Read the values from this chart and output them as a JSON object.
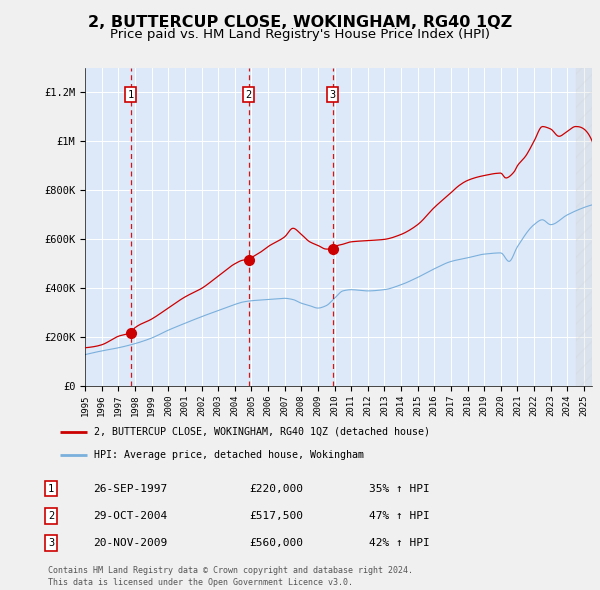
{
  "title": "2, BUTTERCUP CLOSE, WOKINGHAM, RG40 1QZ",
  "subtitle": "Price paid vs. HM Land Registry's House Price Index (HPI)",
  "title_fontsize": 11.5,
  "subtitle_fontsize": 9.5,
  "bg_color": "#f0f0f0",
  "plot_bg_color": "#dde8f8",
  "grid_color": "#ffffff",
  "red_line_color": "#cc0000",
  "blue_line_color": "#7ab0dc",
  "sale_marker_color": "#cc0000",
  "dashed_line_color": "#cc0000",
  "ylim": [
    0,
    1300000
  ],
  "xlim_start": 1995.0,
  "xlim_end": 2025.5,
  "yticks": [
    0,
    200000,
    400000,
    600000,
    800000,
    1000000,
    1200000
  ],
  "ytick_labels": [
    "£0",
    "£200K",
    "£400K",
    "£600K",
    "£800K",
    "£1M",
    "£1.2M"
  ],
  "xtick_years": [
    1995,
    1996,
    1997,
    1998,
    1999,
    2000,
    2001,
    2002,
    2003,
    2004,
    2005,
    2006,
    2007,
    2008,
    2009,
    2010,
    2011,
    2012,
    2013,
    2014,
    2015,
    2016,
    2017,
    2018,
    2019,
    2020,
    2021,
    2022,
    2023,
    2024,
    2025
  ],
  "sales": [
    {
      "year": 1997.74,
      "price": 220000,
      "label": "1"
    },
    {
      "year": 2004.83,
      "price": 517500,
      "label": "2"
    },
    {
      "year": 2009.89,
      "price": 560000,
      "label": "3"
    }
  ],
  "legend_entries": [
    {
      "label": "2, BUTTERCUP CLOSE, WOKINGHAM, RG40 1QZ (detached house)",
      "color": "#cc0000"
    },
    {
      "label": "HPI: Average price, detached house, Wokingham",
      "color": "#7ab0dc"
    }
  ],
  "table_rows": [
    {
      "num": "1",
      "date": "26-SEP-1997",
      "price": "£220,000",
      "change": "35% ↑ HPI"
    },
    {
      "num": "2",
      "date": "29-OCT-2004",
      "price": "£517,500",
      "change": "47% ↑ HPI"
    },
    {
      "num": "3",
      "date": "20-NOV-2009",
      "price": "£560,000",
      "change": "42% ↑ HPI"
    }
  ],
  "footnote": "Contains HM Land Registry data © Crown copyright and database right 2024.\nThis data is licensed under the Open Government Licence v3.0.",
  "hatch_region_start": 2024.5,
  "hatch_region_end": 2025.5
}
